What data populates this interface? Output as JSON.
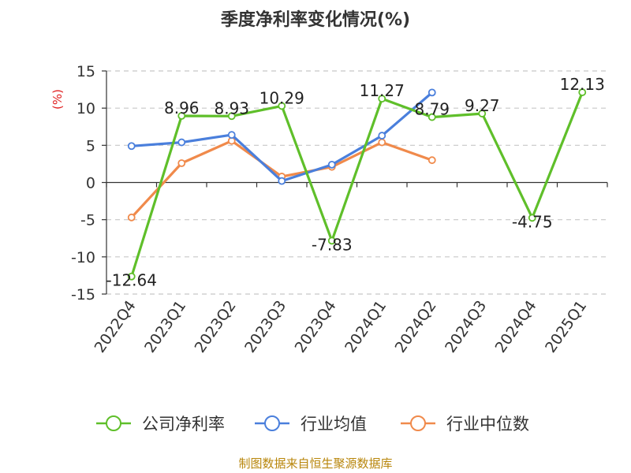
{
  "chart_data": {
    "type": "line",
    "title": "季度净利率变化情况(%)",
    "ylabel": "(%)",
    "xlabel": "",
    "ylim": [
      -15,
      15
    ],
    "yticks": [
      15,
      10,
      5,
      0,
      -5,
      -10,
      -15
    ],
    "grid": true,
    "legend_position": "bottom",
    "categories": [
      "2022Q4",
      "2023Q1",
      "2023Q2",
      "2023Q3",
      "2023Q4",
      "2024Q1",
      "2024Q2",
      "2024Q3",
      "2024Q4",
      "2025Q1"
    ],
    "series": [
      {
        "name": "公司净利率",
        "color": "#5fbf2a",
        "values": [
          -12.64,
          8.96,
          8.93,
          10.29,
          -7.83,
          11.27,
          8.79,
          9.27,
          -4.75,
          12.13
        ],
        "labels": [
          "-12.64",
          "8.96",
          "8.93",
          "10.29",
          "-7.83",
          "11.27",
          "8.79",
          "9.27",
          "-4.75",
          "12.13"
        ]
      },
      {
        "name": "行业均值",
        "color": "#4a7fdc",
        "values": [
          4.9,
          5.4,
          6.4,
          0.2,
          2.4,
          6.3,
          12.1,
          null,
          null,
          null
        ]
      },
      {
        "name": "行业中位数",
        "color": "#f08a4b",
        "values": [
          -4.7,
          2.6,
          5.6,
          0.8,
          2.1,
          5.4,
          3.0,
          null,
          null,
          null
        ]
      }
    ]
  },
  "source_text": "制图数据来自恒生聚源数据库"
}
